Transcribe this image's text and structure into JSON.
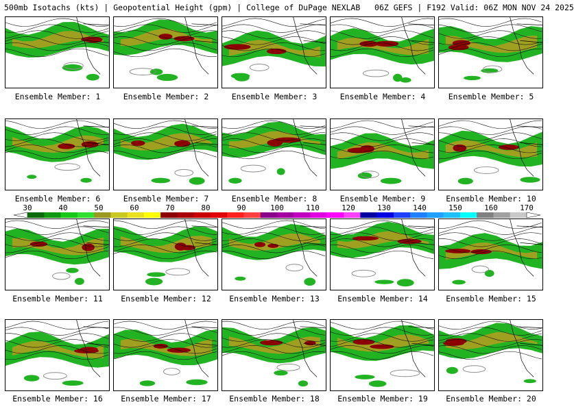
{
  "header": {
    "title": "500mb Isotachs (kts) | Geopotential Height (gpm) | College of DuPage NEXLAB   06Z GEFS | F192 Valid: 06Z MON NOV 24 2025"
  },
  "panels": [
    {
      "label": "Ensemble Member: 1"
    },
    {
      "label": "Ensemble Member: 2"
    },
    {
      "label": "Ensemble Member: 3"
    },
    {
      "label": "Ensemble Member: 4"
    },
    {
      "label": "Ensemble Member: 5"
    },
    {
      "label": "Ensemble Member: 6"
    },
    {
      "label": "Ensemble Member: 7"
    },
    {
      "label": "Ensemble Member: 8"
    },
    {
      "label": "Ensemble Member: 9"
    },
    {
      "label": "Ensemble Member: 10"
    },
    {
      "label": "Ensemble Member: 11"
    },
    {
      "label": "Ensemble Member: 12"
    },
    {
      "label": "Ensemble Member: 13"
    },
    {
      "label": "Ensemble Member: 14"
    },
    {
      "label": "Ensemble Member: 15"
    },
    {
      "label": "Ensemble Member: 16"
    },
    {
      "label": "Ensemble Member: 17"
    },
    {
      "label": "Ensemble Member: 18"
    },
    {
      "label": "Ensemble Member: 19"
    },
    {
      "label": "Ensemble Member: 20"
    }
  ],
  "colorbar": {
    "ticks": [
      "30",
      "40",
      "50",
      "60",
      "70",
      "80",
      "90",
      "100",
      "110",
      "120",
      "130",
      "140",
      "150",
      "160",
      "170"
    ],
    "colors": [
      "#0b6b0b",
      "#109810",
      "#18c818",
      "#30e030",
      "#9a9a20",
      "#c8c820",
      "#e8e020",
      "#ffff00",
      "#8b0000",
      "#a80000",
      "#c80000",
      "#e00000",
      "#ff2020",
      "#ff4040",
      "#8b008b",
      "#a000a0",
      "#c000c0",
      "#e000e0",
      "#ff00ff",
      "#ff40ff",
      "#0000a0",
      "#0000e0",
      "#2040ff",
      "#2080ff",
      "#20a0ff",
      "#20c0ff",
      "#00ffff",
      "#808080",
      "#a0a0a0",
      "#c8c8c8"
    ]
  }
}
